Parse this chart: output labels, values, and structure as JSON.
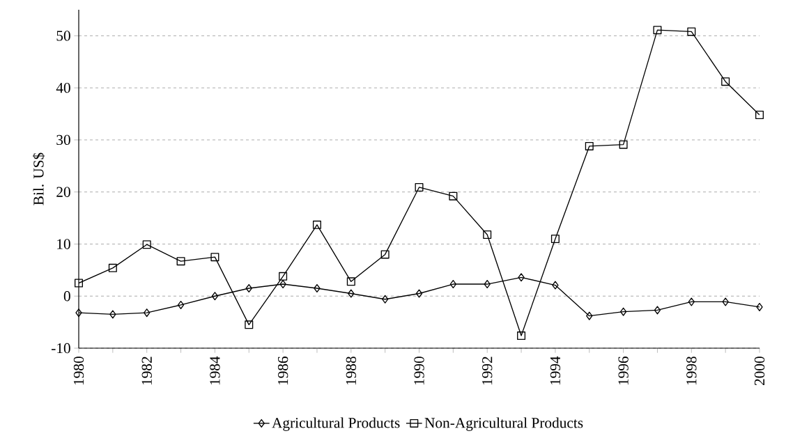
{
  "chart_data": {
    "type": "line",
    "ylabel": "Bil. US$",
    "x": [
      1980,
      1981,
      1982,
      1983,
      1984,
      1985,
      1986,
      1987,
      1988,
      1989,
      1990,
      1991,
      1992,
      1993,
      1994,
      1995,
      1996,
      1997,
      1998,
      1999,
      2000
    ],
    "series": [
      {
        "name": "Agricultural Products",
        "color": "#000000",
        "marker": "diamond",
        "values": [
          -3.2,
          -3.5,
          -3.2,
          -1.7,
          0,
          1.5,
          2.3,
          1.5,
          0.5,
          -0.6,
          0.5,
          2.3,
          2.3,
          3.6,
          2.1,
          -3.8,
          -3.0,
          -2.7,
          -1.1,
          -1.1,
          -2.1
        ]
      },
      {
        "name": "Non-Agricultural Products",
        "color": "#000000",
        "marker": "square",
        "values": [
          2.5,
          5.4,
          9.9,
          6.7,
          7.5,
          -5.5,
          3.8,
          13.7,
          2.8,
          8.0,
          20.9,
          19.2,
          11.8,
          -7.6,
          11.0,
          28.8,
          29.1,
          51.1,
          50.8,
          41.2,
          34.8
        ]
      }
    ],
    "xlim": [
      1980,
      2000
    ],
    "xticks": [
      1980,
      {
        "value": 1981,
        "label": null
      },
      1982,
      {
        "value": 1983,
        "label": null
      },
      1984,
      {
        "value": 1985,
        "label": null
      },
      1986,
      {
        "value": 1987,
        "label": null
      },
      1988,
      {
        "value": 1989,
        "label": null
      },
      1990,
      {
        "value": 1991,
        "label": null
      },
      1992,
      {
        "value": 1993,
        "label": null
      },
      1994,
      {
        "value": 1995,
        "label": null
      },
      1996,
      {
        "value": 1997,
        "label": null
      },
      1998,
      {
        "value": 1999,
        "label": null
      },
      2000
    ],
    "ylim": [
      -10,
      55
    ],
    "yticks": [
      -10,
      0,
      10,
      20,
      30,
      40,
      50
    ],
    "grid": "y",
    "legend": "bottom",
    "line_style": "solid"
  }
}
